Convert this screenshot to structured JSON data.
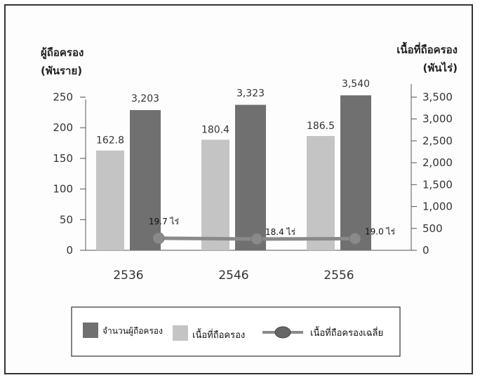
{
  "chart_data": {
    "type": "bar",
    "categories": [
      "2536",
      "2546",
      "2556"
    ],
    "series": [
      {
        "name": "จำนวนผู้ถือครอง",
        "axis": "right",
        "values": [
          3203,
          3323,
          3540
        ],
        "labels": [
          "3,203",
          "3,323",
          "3,540"
        ],
        "color": "#707070"
      },
      {
        "name": "เนื้อที่ถือครอง",
        "axis": "left",
        "values": [
          162.8,
          180.4,
          186.5
        ],
        "labels": [
          "162.8",
          "180.4",
          "186.5"
        ],
        "color": "#c4c4c4"
      },
      {
        "name": "เนื้อที่ถือครองเฉลี่ย",
        "type": "line",
        "values": [
          19.7,
          18.4,
          19.0
        ],
        "labels": [
          "19.7 ไร่",
          "18.4 ไร่",
          "19.0 ไร่"
        ],
        "color": "#8a8a8a"
      }
    ],
    "left_axis": {
      "title_line1": "ผู้ถือครอง",
      "title_line2": "(พันราย)",
      "ylim": [
        0,
        270
      ],
      "ticks": [
        0,
        50,
        100,
        150,
        200,
        250
      ],
      "tick_labels": [
        "0",
        "50",
        "100",
        "150",
        "200",
        "250"
      ]
    },
    "right_axis": {
      "title_line1": "เนื้อที่ถือครอง",
      "title_line2": "(พันไร่)",
      "ylim": [
        0,
        3780
      ],
      "ticks": [
        0,
        500,
        1000,
        1500,
        2000,
        2500,
        3000,
        3500
      ],
      "tick_labels": [
        "0",
        "500",
        "1,000",
        "1,500",
        "2,000",
        "2,500",
        "3,000",
        "3,500"
      ]
    },
    "grid": false,
    "legend_position": "bottom"
  }
}
